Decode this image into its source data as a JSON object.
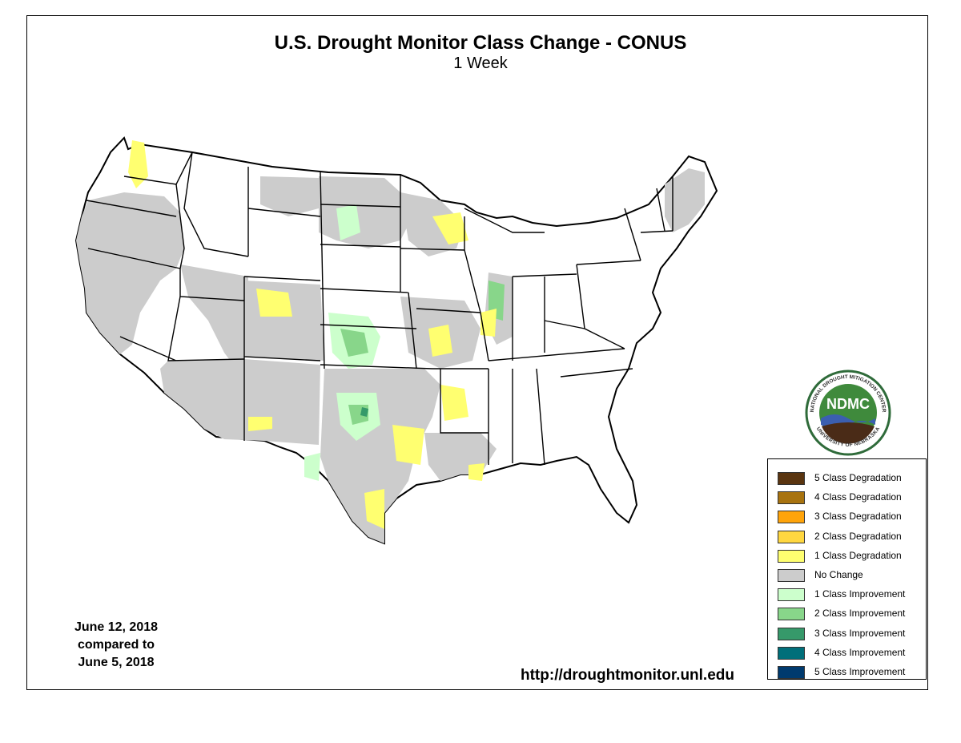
{
  "header": {
    "title": "U.S. Drought Monitor Class Change - CONUS",
    "subtitle": "1 Week"
  },
  "dates": {
    "line1": "June 12, 2018",
    "line2": "compared to",
    "line3": "June 5, 2018"
  },
  "url": "http://droughtmonitor.unl.edu",
  "logo": {
    "abbr": "NDMC",
    "ring_top": "NATIONAL DROUGHT MITIGATION CENTER",
    "ring_bottom": "UNIVERSITY OF NEBRASKA"
  },
  "legend": {
    "items": [
      {
        "label": "5 Class Degradation",
        "color": "#5a3510"
      },
      {
        "label": "4 Class Degradation",
        "color": "#a8730f"
      },
      {
        "label": "3 Class Degradation",
        "color": "#ffa40a"
      },
      {
        "label": "2 Class Degradation",
        "color": "#ffd740"
      },
      {
        "label": "1 Class Degradation",
        "color": "#ffff70"
      },
      {
        "label": "No Change",
        "color": "#cccccc"
      },
      {
        "label": "1 Class Improvement",
        "color": "#ccffcc"
      },
      {
        "label": "2 Class Improvement",
        "color": "#88d68a"
      },
      {
        "label": "3 Class Improvement",
        "color": "#36996a"
      },
      {
        "label": "4 Class Improvement",
        "color": "#006f7a"
      },
      {
        "label": "5 Class Improvement",
        "color": "#003a6e"
      }
    ]
  },
  "map_colors": {
    "no_change": "#cccccc",
    "degrade_1": "#ffff70",
    "improve_1": "#ccffcc",
    "improve_2": "#88d68a",
    "improve_3": "#36996a",
    "state_fill": "#ffffff",
    "border": "#000000"
  },
  "logo_colors": {
    "ring": "#2f6b3a",
    "inner": "#3f8a3c",
    "water": "#3b5fb0",
    "soil": "#4a2b17"
  }
}
